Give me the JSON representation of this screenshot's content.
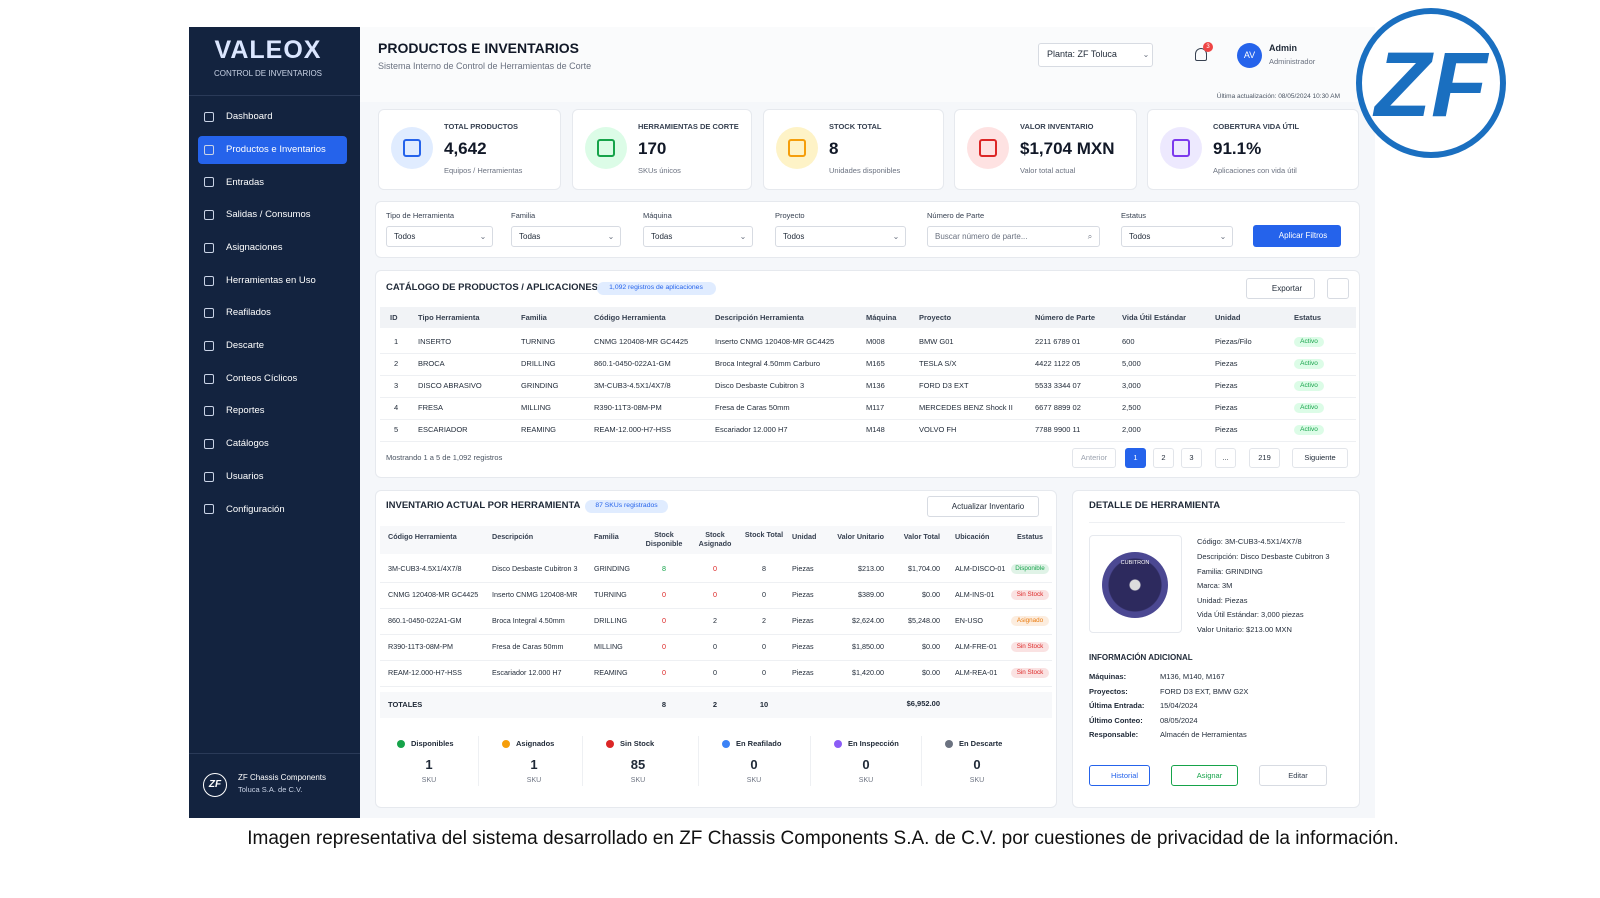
{
  "brand": {
    "logo": "VALEOX",
    "subtitle": "CONTROL DE INVENTARIOS"
  },
  "nav": [
    "Dashboard",
    "Productos e Inventarios",
    "Entradas",
    "Salidas / Consumos",
    "Asignaciones",
    "Herramientas en Uso",
    "Reafilados",
    "Descarte",
    "Conteos Cíclicos",
    "Reportes",
    "Catálogos",
    "Usuarios",
    "Configuración"
  ],
  "company": {
    "logo": "ZF",
    "name": "ZF Chassis Components",
    "location": "Toluca S.A. de C.V."
  },
  "header": {
    "title": "PRODUCTOS E INVENTARIOS",
    "subtitle": "Sistema Interno de Control de Herramientas de Corte",
    "plant": "Planta:  ZF Toluca",
    "notifications": "3",
    "avatar": "AV",
    "user": "Admin",
    "role": "Administrador",
    "last_update": "Última actualización: 08/05/2024 10:30 AM"
  },
  "kpis": [
    {
      "label": "TOTAL PRODUCTOS",
      "value": "4,642",
      "note": "Equipos / Herramientas",
      "color": "#2563eb",
      "bg": "#e0ecff"
    },
    {
      "label": "HERRAMIENTAS DE CORTE",
      "value": "170",
      "note": "SKUs únicos",
      "color": "#16a34a",
      "bg": "#dcfce7"
    },
    {
      "label": "STOCK TOTAL",
      "value": "8",
      "note": "Unidades disponibles",
      "color": "#f59e0b",
      "bg": "#fef3c7"
    },
    {
      "label": "VALOR INVENTARIO",
      "value": "$1,704 MXN",
      "note": "Valor total actual",
      "color": "#dc2626",
      "bg": "#fee2e2"
    },
    {
      "label": "COBERTURA VIDA ÚTIL",
      "value": "91.1%",
      "note": "Aplicaciones con vida útil",
      "color": "#7c3aed",
      "bg": "#ede9fe"
    }
  ],
  "filters": [
    {
      "label": "Tipo de Herramienta",
      "value": "Todos"
    },
    {
      "label": "Familia",
      "value": "Todas"
    },
    {
      "label": "Máquina",
      "value": "Todas"
    },
    {
      "label": "Proyecto",
      "value": "Todos"
    },
    {
      "label": "Número de Parte",
      "value": "Buscar número de parte..."
    },
    {
      "label": "Estatus",
      "value": "Todos"
    }
  ],
  "apply_button": "Aplicar Filtros",
  "catalog": {
    "title": "CATÁLOGO DE PRODUCTOS / APLICACIONES",
    "badge": "1,092 registros de aplicaciones",
    "export": "Exportar",
    "columns": [
      "ID",
      "Tipo Herramienta",
      "Familia",
      "Código Herramienta",
      "Descripción Herramienta",
      "Máquina",
      "Proyecto",
      "Número de Parte",
      "Vida Útil Estándar",
      "Unidad",
      "Estatus"
    ],
    "rows": [
      [
        "1",
        "INSERTO",
        "TURNING",
        "CNMG 120408-MR GC4425",
        "Inserto CNMG 120408-MR GC4425",
        "M008",
        "BMW G01",
        "2211 6789 01",
        "600",
        "Piezas/Filo",
        "Activo"
      ],
      [
        "2",
        "BROCA",
        "DRILLING",
        "860.1-0450-022A1-GM",
        "Broca Integral 4.50mm Carburo",
        "M165",
        "TESLA S/X",
        "4422 1122 05",
        "5,000",
        "Piezas",
        "Activo"
      ],
      [
        "3",
        "DISCO ABRASIVO",
        "GRINDING",
        "3M-CUB3-4.5X1/4X7/8",
        "Disco Desbaste Cubitron 3",
        "M136",
        "FORD D3 EXT",
        "5533 3344 07",
        "3,000",
        "Piezas",
        "Activo"
      ],
      [
        "4",
        "FRESA",
        "MILLING",
        "R390-11T3-08M-PM",
        "Fresa de Caras 50mm",
        "M117",
        "MERCEDES BENZ Shock II",
        "6677 8899 02",
        "2,500",
        "Piezas",
        "Activo"
      ],
      [
        "5",
        "ESCARIADOR",
        "REAMING",
        "REAM-12.000-H7-HSS",
        "Escariador 12.000 H7",
        "M148",
        "VOLVO FH",
        "7788 9900 11",
        "2,000",
        "Piezas",
        "Activo"
      ]
    ],
    "footer": "Mostrando 1 a 5 de 1,092 registros",
    "pagination": [
      "Anterior",
      "1",
      "2",
      "3",
      "...",
      "219",
      "Siguiente"
    ]
  },
  "inventory": {
    "title": "INVENTARIO ACTUAL POR HERRAMIENTA",
    "badge": "87 SKUs registrados",
    "button": "Actualizar Inventario",
    "columns": [
      "Código Herramienta",
      "Descripción",
      "Familia",
      "Stock Disponible",
      "Stock Asignado",
      "Stock Total",
      "Unidad",
      "Valor Unitario",
      "Valor Total",
      "Ubicación",
      "Estatus"
    ],
    "rows": [
      [
        "3M-CUB3-4.5X1/4X7/8",
        "Disco Desbaste Cubitron 3",
        "GRINDING",
        "8",
        "0",
        "8",
        "Piezas",
        "$213.00",
        "$1,704.00",
        "ALM-DISCO-01",
        "Disponible"
      ],
      [
        "CNMG 120408-MR GC4425",
        "Inserto CNMG 120408-MR",
        "TURNING",
        "0",
        "0",
        "0",
        "Piezas",
        "$389.00",
        "$0.00",
        "ALM-INS-01",
        "Sin Stock"
      ],
      [
        "860.1-0450-022A1-GM",
        "Broca Integral 4.50mm",
        "DRILLING",
        "0",
        "2",
        "2",
        "Piezas",
        "$2,624.00",
        "$5,248.00",
        "EN-USO",
        "Asignado"
      ],
      [
        "R390-11T3-08M-PM",
        "Fresa de Caras 50mm",
        "MILLING",
        "0",
        "0",
        "0",
        "Piezas",
        "$1,850.00",
        "$0.00",
        "ALM-FRE-01",
        "Sin Stock"
      ],
      [
        "REAM-12.000-H7-HSS",
        "Escariador 12.000 H7",
        "REAMING",
        "0",
        "0",
        "0",
        "Piezas",
        "$1,420.00",
        "$0.00",
        "ALM-REA-01",
        "Sin Stock"
      ]
    ],
    "status_colors": {
      "Disponible": "#16a34a",
      "Sin Stock": "#dc2626",
      "Asignado": "#ea7a0c"
    },
    "totals": {
      "label": "TOTALES",
      "stock_disponible": "8",
      "stock_asignado": "2",
      "stock_total": "10",
      "valor_total": "$6,952.00"
    },
    "legend": [
      {
        "label": "Disponibles",
        "value": "1",
        "unit": "SKU",
        "color": "#16a34a"
      },
      {
        "label": "Asignados",
        "value": "1",
        "unit": "SKU",
        "color": "#f59e0b"
      },
      {
        "label": "Sin Stock",
        "value": "85",
        "unit": "SKU",
        "color": "#dc2626"
      },
      {
        "label": "En Reafilado",
        "value": "0",
        "unit": "SKU",
        "color": "#3b82f6"
      },
      {
        "label": "En Inspección",
        "value": "0",
        "unit": "SKU",
        "color": "#8b5cf6"
      },
      {
        "label": "En Descarte",
        "value": "0",
        "unit": "SKU",
        "color": "#6b7280"
      }
    ]
  },
  "detail": {
    "title": "DETALLE DE HERRAMIENTA",
    "image_text": "CUBITRON",
    "lines": [
      "Código: 3M-CUB3-4.5X1/4X7/8",
      "Descripción: Disco Desbaste Cubitron 3",
      "Familia: GRINDING",
      "Marca: 3M",
      "Unidad: Piezas",
      "Vida Útil Estándar: 3,000 piezas",
      "Valor Unitario: $213.00 MXN"
    ],
    "info_title": "INFORMACIÓN ADICIONAL",
    "info": [
      [
        "Máquinas:",
        "M136, M140, M167"
      ],
      [
        "Proyectos:",
        "FORD D3 EXT, BMW G2X"
      ],
      [
        "Última Entrada:",
        "15/04/2024"
      ],
      [
        "Último Conteo:",
        "08/05/2024"
      ],
      [
        "Responsable:",
        "Almacén de Herramientas"
      ]
    ],
    "buttons": [
      "Historial",
      "Asignar",
      "Editar"
    ]
  },
  "caption": "Imagen representativa del sistema desarrollado en ZF Chassis Components S.A. de C.V. por cuestiones de privacidad de la información."
}
